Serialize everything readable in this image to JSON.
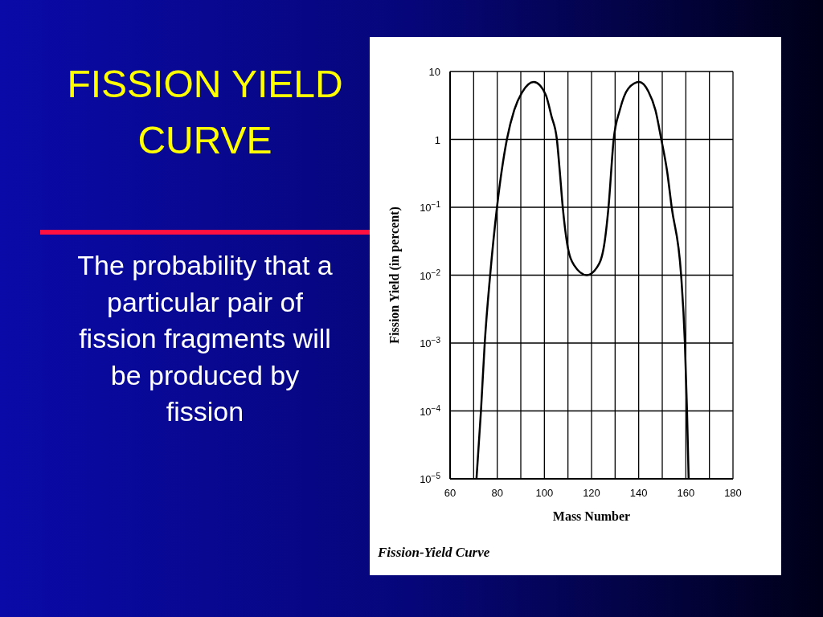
{
  "chart_data": {
    "type": "line",
    "title": "FISSION YIELD CURVE",
    "xlabel": "Mass Number",
    "ylabel": "Fission Yield (in percent)",
    "annotations": [
      "The probability that a particular pair of fission fragments will be produced by fission",
      "Fission-Yield Curve"
    ],
    "x": [
      71.2,
      73.1,
      74.7,
      77,
      79.9,
      84.1,
      87.2,
      90.5,
      95.5,
      100.5,
      103,
      105.3,
      106.5,
      107.8,
      109.6,
      112.6,
      118,
      122.3,
      125.3,
      127.2,
      129.4,
      132,
      135.6,
      140.2,
      144.1,
      147.1,
      149.6,
      152,
      154,
      158,
      159.6,
      160.5,
      161.2
    ],
    "series": [
      {
        "color": "#000000",
        "values": [
          1e-05,
          0.0001,
          0.001,
          0.01,
          0.1,
          1,
          2.7,
          4.9,
          7,
          4.6,
          2.2,
          1,
          0.35,
          0.1,
          0.03,
          0.014,
          0.01,
          0.013,
          0.027,
          0.1,
          1,
          2.7,
          5.6,
          7,
          5.1,
          2.7,
          1,
          0.35,
          0.1,
          0.01,
          0.001,
          0.0001,
          1e-05
        ]
      }
    ],
    "xlim": [
      60,
      180
    ],
    "xticks": [
      60,
      {
        "value": 70,
        "label": null
      },
      80,
      {
        "value": 90,
        "label": null
      },
      100,
      {
        "value": 110,
        "label": null
      },
      120,
      {
        "value": 130,
        "label": null
      },
      140,
      {
        "value": 150,
        "label": null
      },
      160,
      {
        "value": 170,
        "label": null
      },
      180
    ],
    "ylim": [
      1e-05,
      10
    ],
    "log": true,
    "yticks": [
      {
        "value": 1e-05,
        "label": "10$^{−5}$"
      },
      {
        "value": 0.0001,
        "label": "10$^{−4}$"
      },
      {
        "value": 0.001,
        "label": "10$^{−3}$"
      },
      {
        "value": 0.01,
        "label": "10$^{−2}$"
      },
      {
        "value": 0.1,
        "label": "10$^{−1}$"
      },
      1,
      10
    ],
    "grid": true
  }
}
